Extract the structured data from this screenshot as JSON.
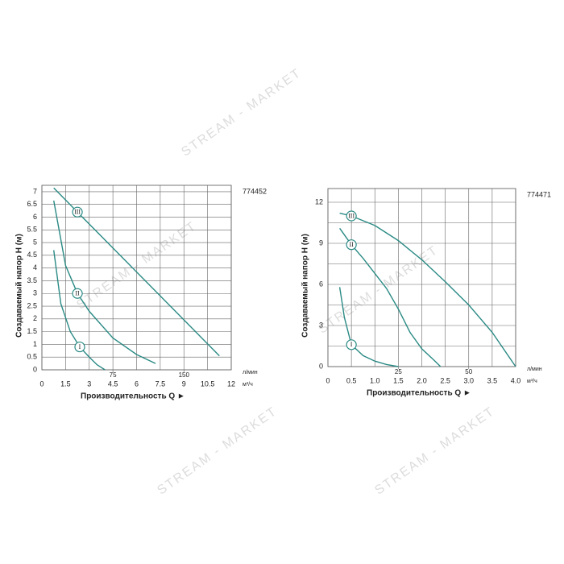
{
  "watermark": "STREAM - MARKET",
  "chart_data": [
    {
      "type": "line",
      "model": "774452",
      "ylabel": "Создаваемый напор H (м)",
      "xlabel": "Производительность Q ►",
      "xunit": "м³/ч",
      "x2unit": "л/мин",
      "color": "#2a8a84",
      "grid": true,
      "xlim": [
        0,
        12
      ],
      "xticks": [
        0,
        1.5,
        3,
        4.5,
        6,
        7.5,
        9,
        10.5,
        12
      ],
      "x2ticks": [
        {
          "value": 4.5,
          "label": "75"
        },
        {
          "value": 9,
          "label": "150"
        }
      ],
      "ylim": [
        0,
        7.25
      ],
      "yticks": [
        0,
        0.5,
        1,
        1.5,
        2,
        2.5,
        3,
        3.5,
        4,
        4.5,
        5,
        5.5,
        6,
        6.5,
        7
      ],
      "series": [
        {
          "name": "I",
          "x": [
            0.75,
            1.2,
            1.8,
            2.4,
            3,
            3.5,
            4.0
          ],
          "values": [
            4.7,
            2.6,
            1.5,
            0.9,
            0.5,
            0.2,
            0
          ]
        },
        {
          "name": "II",
          "x": [
            0.75,
            1.5,
            2.25,
            3,
            4.5,
            6,
            7.2
          ],
          "values": [
            6.65,
            4.1,
            3.0,
            2.3,
            1.25,
            0.6,
            0.25
          ]
        },
        {
          "name": "III",
          "x": [
            0.75,
            2.25,
            11.25
          ],
          "values": [
            7.15,
            6.2,
            0.55
          ]
        }
      ]
    },
    {
      "type": "line",
      "model": "774471",
      "ylabel": "Создаваемый напор H (м)",
      "xlabel": "Производительность Q ►",
      "xunit": "м³/ч",
      "x2unit": "л/мин",
      "color": "#2a8a84",
      "grid": true,
      "xlim": [
        0,
        4
      ],
      "xticks": [
        0,
        0.5,
        {
          "value": 1,
          "label": "1.0"
        },
        1.5,
        {
          "value": 2,
          "label": "2.0"
        },
        2.5,
        {
          "value": 3,
          "label": "3.0"
        },
        3.5,
        {
          "value": 4,
          "label": "4.0"
        }
      ],
      "x2ticks": [
        {
          "value": 1.5,
          "label": "25"
        },
        {
          "value": 3,
          "label": "50"
        }
      ],
      "ylim": [
        0,
        13
      ],
      "yticks": [
        0,
        3,
        6,
        9,
        12
      ],
      "yminor": [
        1.5,
        4.5,
        7.5,
        10.5
      ],
      "series": [
        {
          "name": "I",
          "x": [
            0.25,
            0.35,
            0.5,
            0.75,
            1.0,
            1.25,
            1.5
          ],
          "values": [
            5.8,
            3.6,
            1.6,
            0.8,
            0.4,
            0.15,
            0
          ]
        },
        {
          "name": "II",
          "x": [
            0.25,
            0.5,
            0.75,
            1.0,
            1.25,
            1.5,
            1.75,
            2.0,
            2.25,
            2.4
          ],
          "values": [
            10.1,
            8.9,
            7.9,
            6.8,
            5.7,
            4.2,
            2.5,
            1.3,
            0.5,
            0
          ]
        },
        {
          "name": "III",
          "x": [
            0.25,
            0.5,
            1.0,
            1.5,
            2.0,
            2.5,
            3.0,
            3.5,
            4.0
          ],
          "values": [
            11.2,
            11.0,
            10.3,
            9.2,
            7.8,
            6.2,
            4.5,
            2.5,
            0
          ]
        }
      ]
    }
  ]
}
